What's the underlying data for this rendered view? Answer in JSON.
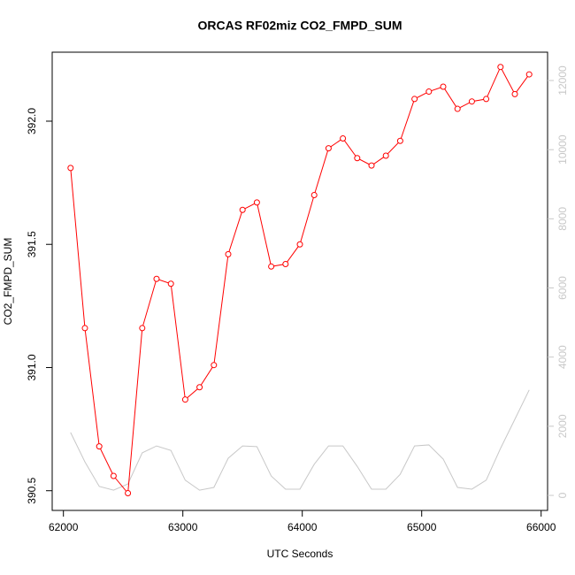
{
  "chart_data": {
    "type": "line",
    "title": "ORCAS RF02miz CO2_FMPD_SUM",
    "x_label": "UTC Seconds",
    "y_label": "CO2_FMPD_SUM",
    "x": [
      62060,
      62180,
      62300,
      62420,
      62540,
      62660,
      62780,
      62900,
      63020,
      63140,
      63260,
      63380,
      63500,
      63620,
      63740,
      63860,
      63980,
      64100,
      64220,
      64340,
      64460,
      64580,
      64700,
      64820,
      64940,
      65060,
      65180,
      65300,
      65420,
      65540,
      65660,
      65780,
      65900
    ],
    "series": [
      {
        "color": "#ff0000",
        "markers": true,
        "values": [
          391.81,
          391.16,
          390.68,
          390.56,
          390.49,
          391.16,
          391.36,
          391.34,
          390.87,
          390.92,
          391.01,
          391.46,
          391.64,
          391.67,
          391.41,
          391.42,
          391.5,
          391.7,
          391.89,
          391.93,
          391.85,
          391.82,
          391.86,
          391.92,
          392.09,
          392.12,
          392.14,
          392.05,
          392.08,
          392.09,
          392.22,
          392.11,
          392.19
        ]
      },
      {
        "color": "#c8c8c8",
        "axis": "y2",
        "markers": false,
        "values": [
          1820,
          970,
          260,
          150,
          330,
          1230,
          1430,
          1300,
          440,
          150,
          230,
          1075,
          1430,
          1410,
          560,
          180,
          180,
          900,
          1430,
          1430,
          840,
          180,
          180,
          610,
          1430,
          1460,
          1050,
          230,
          180,
          440,
          1360,
          2200,
          3050
        ]
      }
    ],
    "xlim": [
      61906,
      66054
    ],
    "xticks": [
      62000,
      63000,
      64000,
      65000,
      66000
    ],
    "ylim": [
      390.42,
      392.28
    ],
    "yticks": [
      390.5,
      {
        "value": 391,
        "label": "391.0"
      },
      391.5,
      {
        "value": 392,
        "label": "392.0"
      }
    ],
    "y2lim": [
      -435,
      12819
    ],
    "y2ticks": [
      0,
      2000,
      4000,
      6000,
      8000,
      10000,
      12000
    ],
    "y2_color": "#c8c8c8"
  }
}
